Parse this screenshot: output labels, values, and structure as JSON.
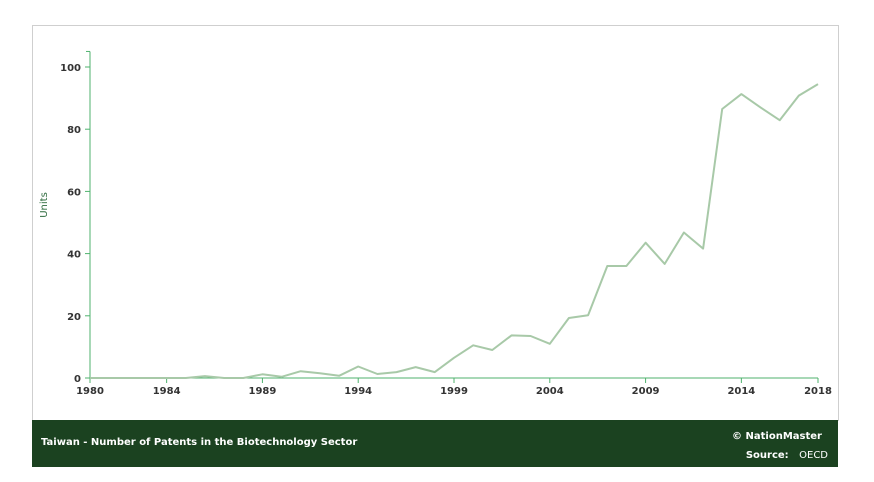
{
  "chart_data": {
    "type": "line",
    "title": "Taiwan - Number of Patents in the Biotechnology Sector",
    "xlabel": "",
    "ylabel": "Units",
    "xlim": [
      1980,
      2018
    ],
    "ylim": [
      0,
      105
    ],
    "x_ticks": [
      "1980",
      "1984",
      "1989",
      "1994",
      "1999",
      "2004",
      "2009",
      "2014",
      "2018"
    ],
    "y_ticks": [
      "0",
      "20",
      "40",
      "60",
      "80",
      "100"
    ],
    "grid": false,
    "line_color": "#a8c9a8",
    "axis_color": "#4fb26e",
    "x": [
      1980,
      1981,
      1982,
      1983,
      1984,
      1985,
      1986,
      1987,
      1988,
      1989,
      1990,
      1991,
      1992,
      1993,
      1994,
      1995,
      1996,
      1997,
      1998,
      1999,
      2000,
      2001,
      2002,
      2003,
      2004,
      2005,
      2006,
      2007,
      2008,
      2009,
      2010,
      2011,
      2012,
      2013,
      2014,
      2015,
      2016,
      2017,
      2018
    ],
    "values": [
      0,
      0,
      0,
      0,
      0,
      0,
      0.6,
      0,
      0,
      1.2,
      0.4,
      2.2,
      1.5,
      0.7,
      3.7,
      1.3,
      1.9,
      3.5,
      1.9,
      6.5,
      10.5,
      9,
      13.7,
      13.5,
      11,
      19.3,
      20.2,
      36,
      36,
      43.5,
      36.7,
      46.8,
      41.6,
      86.5,
      91.3,
      87,
      82.9,
      90.8,
      94.5
    ]
  },
  "footer": {
    "title": "Taiwan - Number of Patents in the Biotechnology Sector",
    "copyright": "© NationMaster",
    "source_label": "Source:",
    "source": "OECD"
  }
}
